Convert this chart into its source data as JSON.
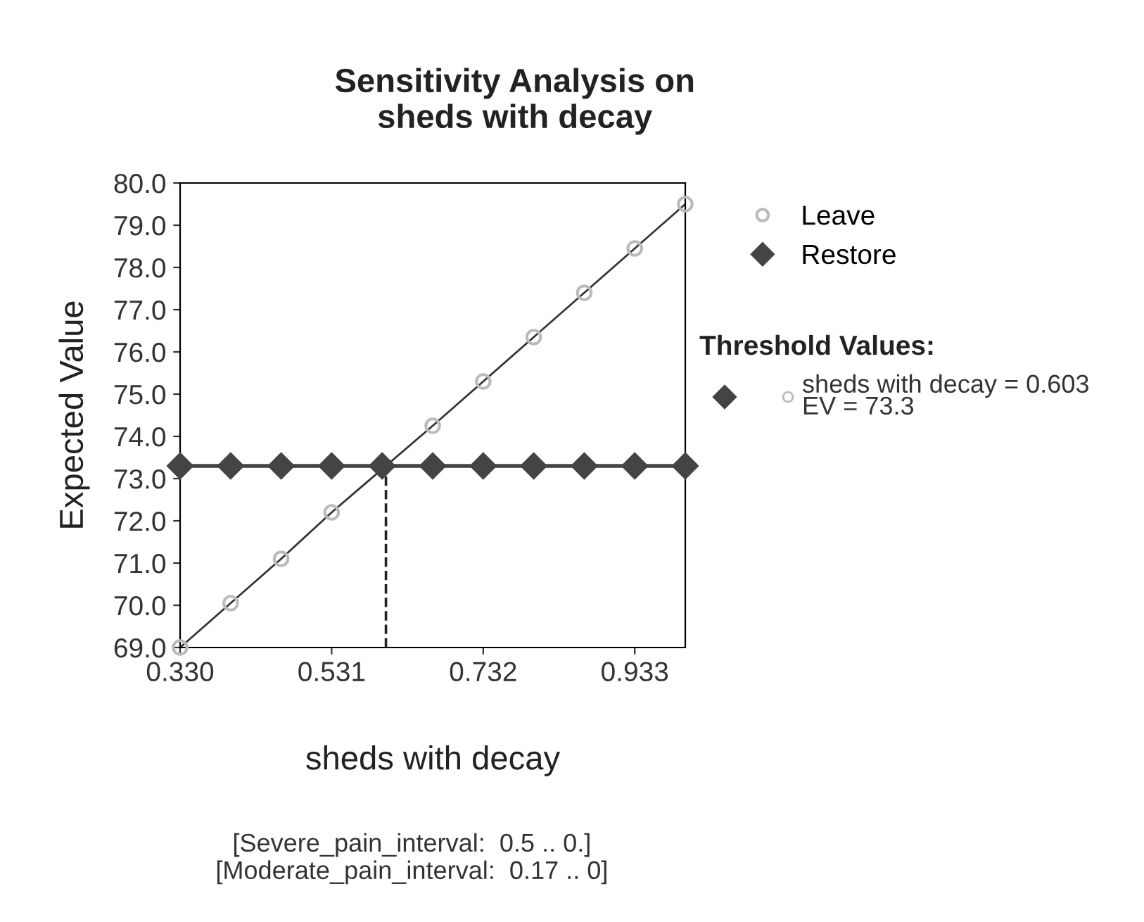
{
  "chart_data": {
    "type": "line",
    "title": "Sensitivity Analysis on\nsheds with decay",
    "xlabel": "sheds with decay",
    "ylabel": "Expected Value",
    "x": [
      0.33,
      0.397,
      0.464,
      0.531,
      0.598,
      0.665,
      0.732,
      0.799,
      0.866,
      0.933,
      1.0
    ],
    "series": [
      {
        "name": "Leave",
        "color": "#bbbbbb",
        "marker": "circle",
        "values": [
          69.0,
          70.05,
          71.1,
          72.2,
          null,
          74.25,
          75.3,
          76.35,
          77.4,
          78.45,
          79.5
        ]
      },
      {
        "name": "Restore",
        "color": "#444444",
        "marker": "diamond",
        "values": [
          73.3,
          73.3,
          73.3,
          73.3,
          73.3,
          73.3,
          73.3,
          73.3,
          73.3,
          73.3,
          73.3
        ]
      }
    ],
    "xlim": [
      0.33,
      1.0
    ],
    "xticks": [
      {
        "value": 0.33,
        "label": "0.330"
      },
      0.531,
      0.732,
      0.933
    ],
    "ylim": [
      69.0,
      80.0
    ],
    "yticks": [
      {
        "value": 69,
        "label": "69.0"
      },
      {
        "value": 70,
        "label": "70.0"
      },
      {
        "value": 71,
        "label": "71.0"
      },
      {
        "value": 72,
        "label": "72.0"
      },
      {
        "value": 73,
        "label": "73.0"
      },
      {
        "value": 74,
        "label": "74.0"
      },
      {
        "value": 75,
        "label": "75.0"
      },
      {
        "value": 76,
        "label": "76.0"
      },
      {
        "value": 77,
        "label": "77.0"
      },
      {
        "value": 78,
        "label": "78.0"
      },
      {
        "value": 79,
        "label": "79.0"
      },
      {
        "value": 80,
        "label": "80.0"
      }
    ],
    "ref_lines": [
      {
        "axis": "x",
        "value": 0.603,
        "color": "#222222",
        "line_style": "dashed"
      }
    ],
    "grid": false,
    "legend": "top right",
    "line_style": "solid",
    "annotations": [
      "Threshold Values:",
      "sheds with decay = 0.603\nEV = 73.3",
      "[Severe_pain_interval:  0.5 .. 0.]\n[Moderate_pain_interval:  0.17 .. 0]"
    ]
  }
}
